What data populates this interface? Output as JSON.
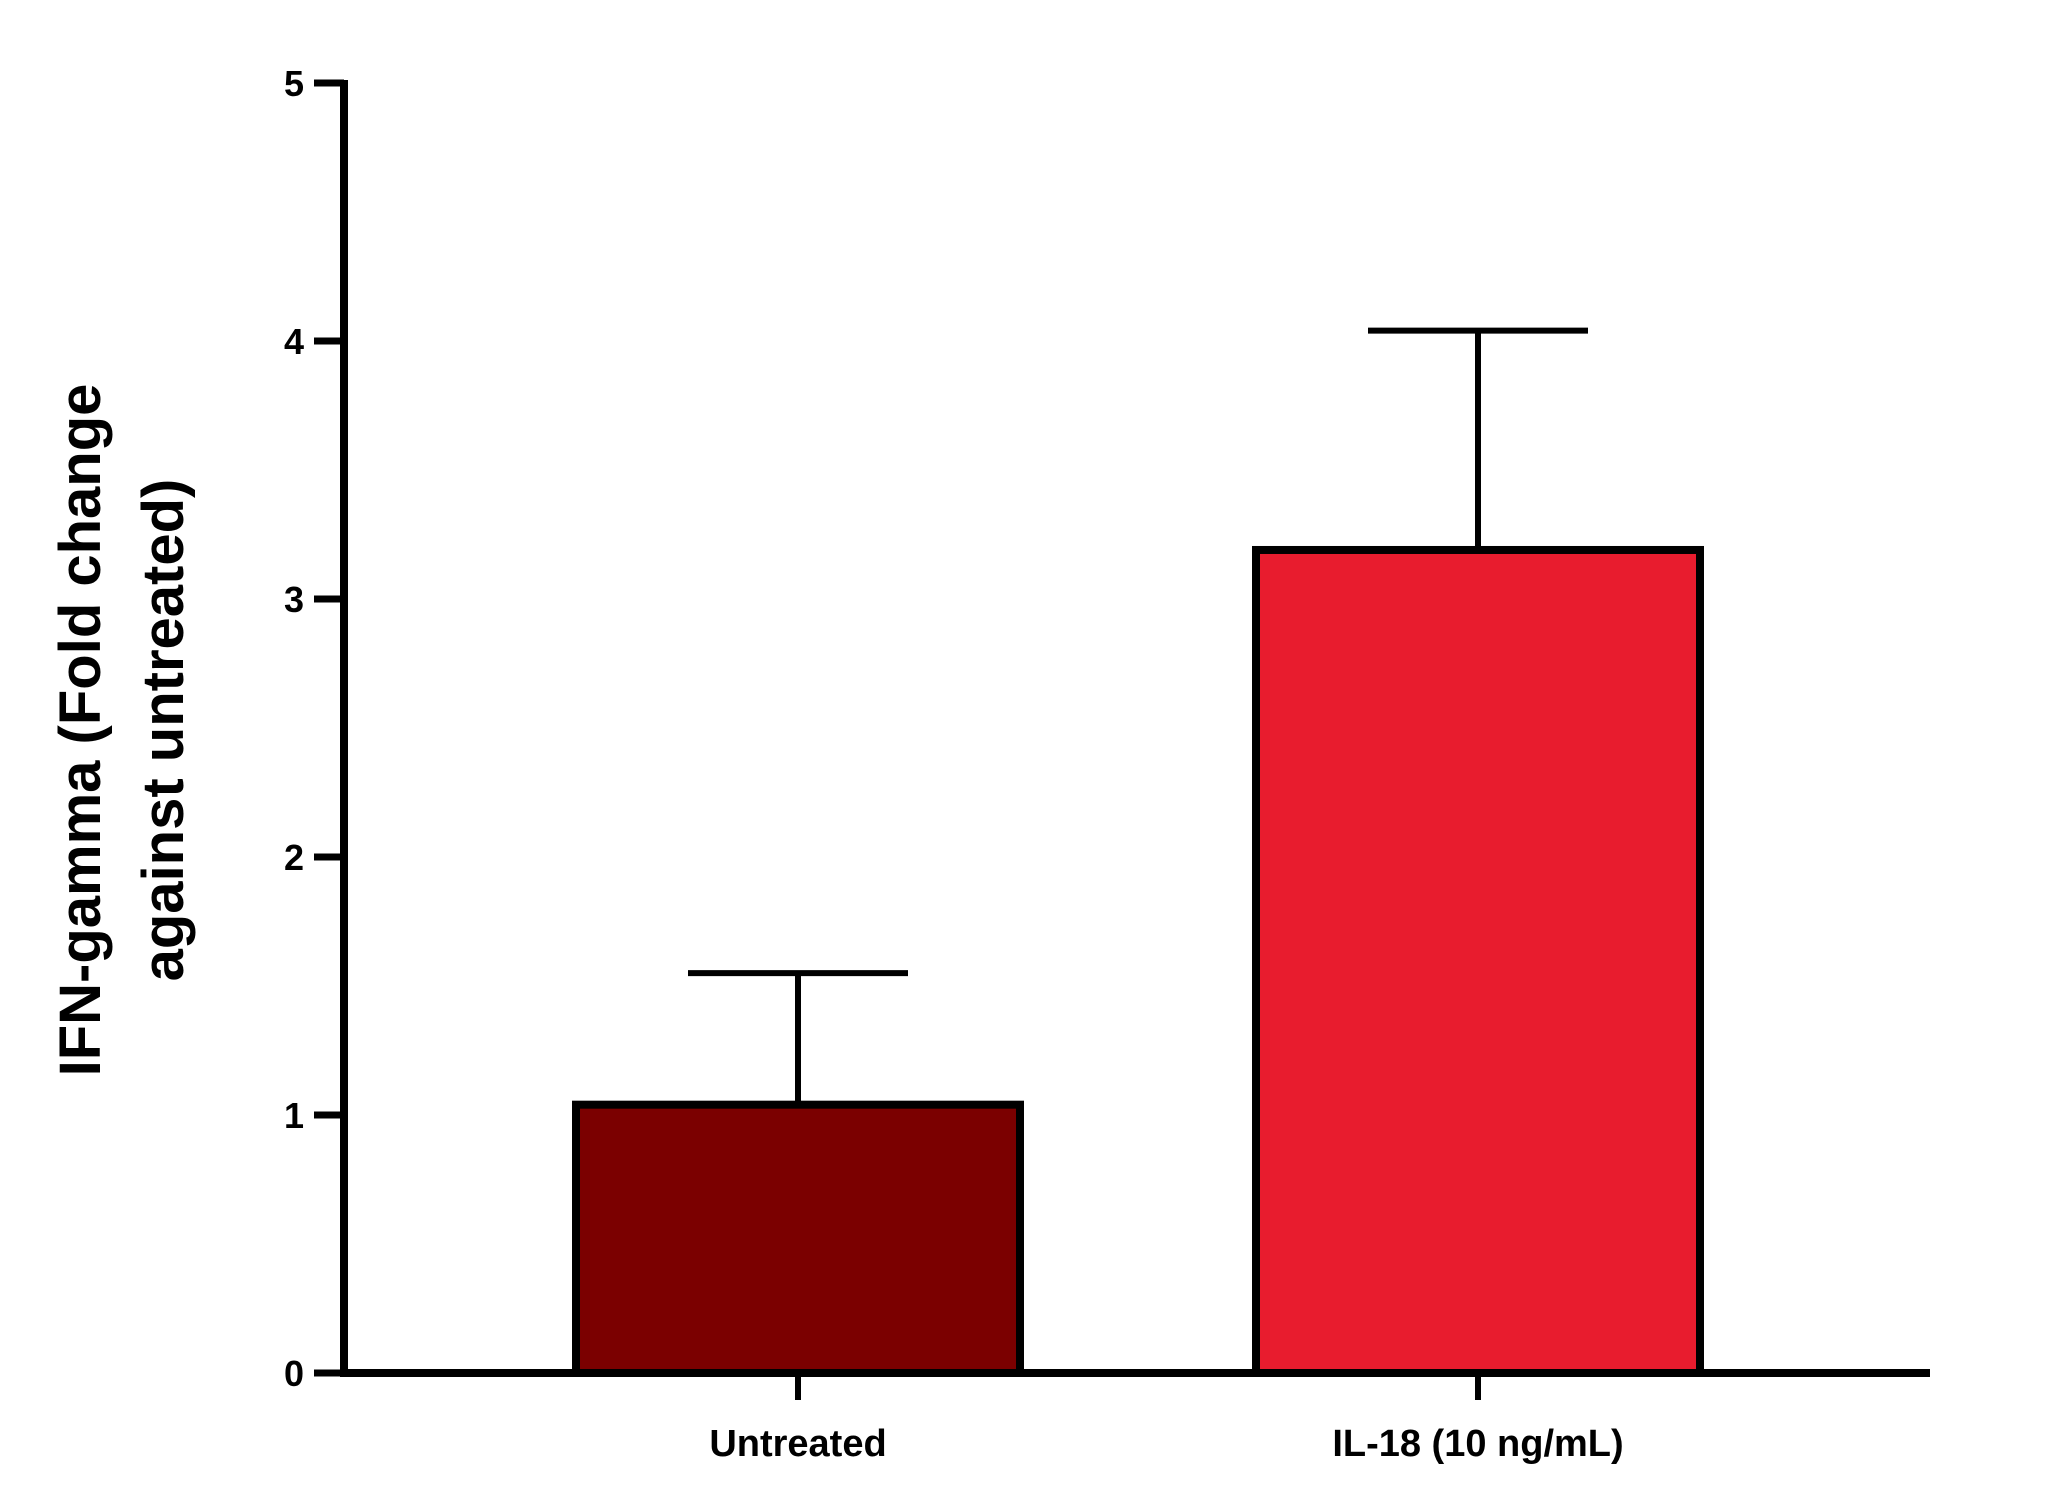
{
  "chart_data": {
    "type": "bar",
    "categories": [
      "Untreated",
      "IL-18 (10 ng/mL)"
    ],
    "values": [
      1.04,
      3.19
    ],
    "error_upper": [
      1.55,
      4.04
    ],
    "colors": [
      "#7b0000",
      "#e81c2e"
    ],
    "ylabel_lines": [
      "IFN-gamma (Fold change",
      "against untreated)"
    ],
    "ylim": [
      0,
      5
    ],
    "yticks": [
      "0",
      "1",
      "2",
      "3",
      "4",
      "5"
    ],
    "grid": false
  }
}
